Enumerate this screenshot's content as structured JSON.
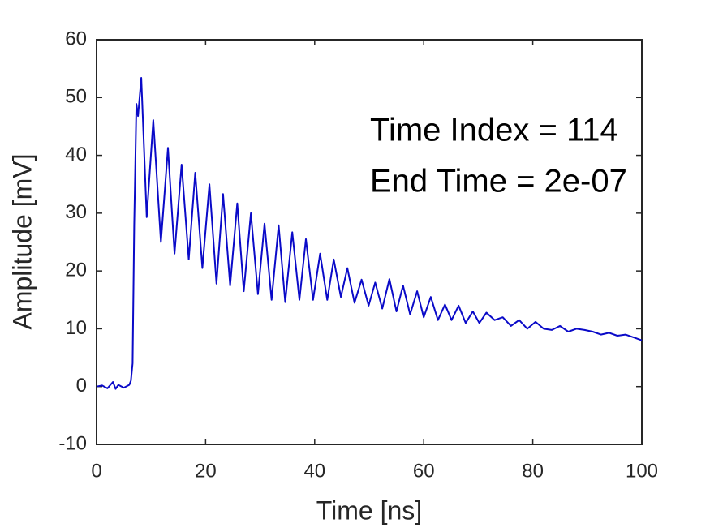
{
  "chart_data": {
    "type": "line",
    "xlabel": "Time [ns]",
    "ylabel": "Amplitude [mV]",
    "annotations": [
      "Time Index = 114",
      "End Time = 2e-07"
    ],
    "x": [
      0,
      1,
      2,
      3,
      3.5,
      4,
      5,
      6,
      6.3,
      6.6,
      6.9,
      7.3,
      7.6,
      8.2,
      9.2,
      10.4,
      11.8,
      13.1,
      14.3,
      15.6,
      16.9,
      18.1,
      19.4,
      20.7,
      22.0,
      23.2,
      24.5,
      25.8,
      27.0,
      28.3,
      29.6,
      30.8,
      32.1,
      33.4,
      34.6,
      35.9,
      37.2,
      38.4,
      39.7,
      41.0,
      42.3,
      43.5,
      44.8,
      46.0,
      47.3,
      48.6,
      49.9,
      51.1,
      52.4,
      53.7,
      55.0,
      56.2,
      57.5,
      58.8,
      60.0,
      61.3,
      62.6,
      63.9,
      65.1,
      66.4,
      67.7,
      69.0,
      70.2,
      71.5,
      73,
      74.5,
      76,
      77.5,
      79,
      80.5,
      82,
      83.5,
      85,
      86.5,
      88,
      89.5,
      91,
      92.5,
      94,
      95.5,
      97,
      98.5,
      100
    ],
    "series": [
      {
        "color": "#0a0ac8",
        "values": [
          0,
          0.2,
          -0.3,
          0.8,
          -0.4,
          0.3,
          -0.2,
          0.3,
          1,
          4,
          28,
          48.9,
          46.8,
          53.4,
          29.3,
          46.1,
          25,
          41.3,
          23,
          38.4,
          22,
          37,
          20.5,
          35,
          17.8,
          33.3,
          17.5,
          31.7,
          16.5,
          30,
          16,
          28.2,
          15,
          27.9,
          14.6,
          26.7,
          15,
          25.5,
          15,
          23,
          15,
          22,
          15.5,
          20.5,
          14.5,
          18.5,
          14,
          18,
          13.5,
          18.6,
          13,
          17.5,
          12.5,
          16.5,
          12,
          15.5,
          11.5,
          14.2,
          11.5,
          14,
          11,
          13,
          11,
          12.8,
          11.5,
          12,
          10.5,
          11.5,
          10,
          11.2,
          10,
          9.8,
          10.5,
          9.5,
          10,
          9.8,
          9.5,
          9,
          9.3,
          8.8,
          9,
          8.5,
          8
        ]
      }
    ],
    "xlim": [
      0,
      100
    ],
    "xticks": [
      0,
      20,
      40,
      60,
      80,
      100
    ],
    "ylim": [
      -10,
      60
    ],
    "yticks": [
      -10,
      0,
      10,
      20,
      30,
      40,
      50,
      60
    ]
  }
}
